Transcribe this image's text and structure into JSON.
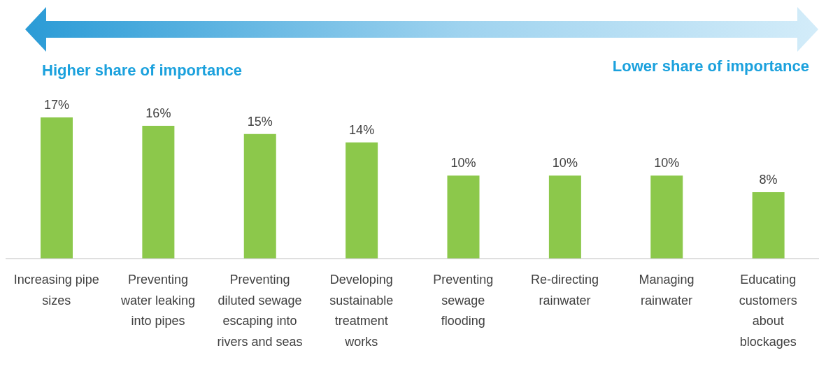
{
  "chart_data": {
    "type": "bar",
    "annotations": [
      "Higher share of importance",
      "Lower share of importance"
    ],
    "categories": [
      "Increasing pipe sizes",
      "Preventing water leaking into pipes",
      "Preventing diluted sewage escaping into rivers and seas",
      "Developing sustainable treatment works",
      "Preventing sewage flooding",
      "Re-directing rainwater",
      "Managing rainwater",
      "Educating customers about blockages"
    ],
    "values": [
      17,
      16,
      15,
      14,
      10,
      10,
      10,
      8
    ],
    "value_labels": [
      "17%",
      "16%",
      "15%",
      "14%",
      "10%",
      "10%",
      "10%",
      "8%"
    ],
    "color": "#8cc84b"
  }
}
